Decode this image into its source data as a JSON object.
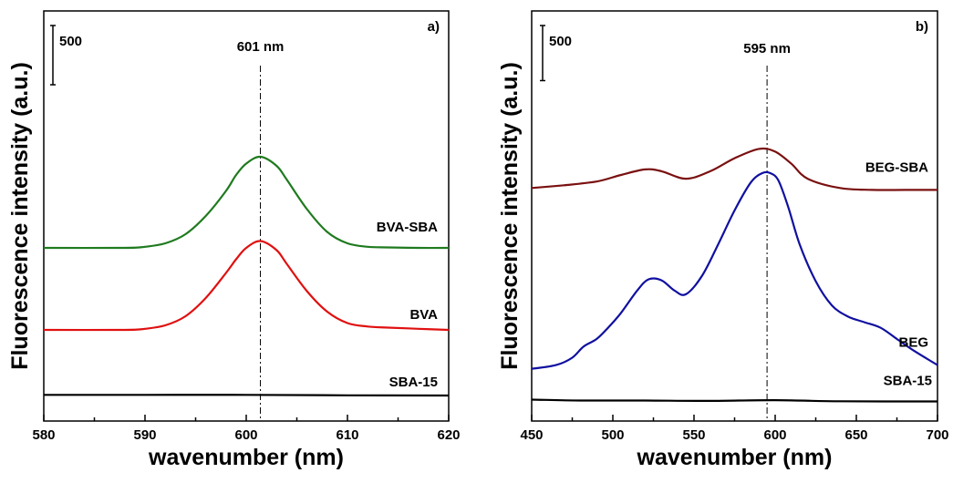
{
  "chart_data": [
    {
      "type": "line",
      "panel_label": "a)",
      "xlabel": "wavenumber (nm)",
      "ylabel": "Fluorescence intensity (a.u.)",
      "xlim": [
        580,
        620
      ],
      "xticks": [
        "580",
        "590",
        "600",
        "610",
        "620"
      ],
      "ylim": [
        0,
        1800
      ],
      "scale_bar": "500",
      "scale_bar_value": 500,
      "reference_line": {
        "x": 601.4,
        "label": "601 nm"
      },
      "series": [
        {
          "name": "BVA-SBA",
          "color": "#1f7a1f",
          "x": [
            580,
            588,
            590,
            592,
            594,
            596,
            598,
            599,
            600,
            601.4,
            603,
            604,
            606,
            608,
            610,
            612,
            614,
            617,
            620
          ],
          "y": [
            760,
            760,
            765,
            780,
            820,
            900,
            1010,
            1080,
            1130,
            1160,
            1120,
            1060,
            930,
            830,
            780,
            765,
            762,
            760,
            760
          ]
        },
        {
          "name": "BVA",
          "color": "#e01010",
          "x": [
            580,
            588,
            590,
            592,
            594,
            596,
            598,
            599,
            600,
            601.4,
            603,
            604,
            606,
            608,
            610,
            612,
            614,
            617,
            620
          ],
          "y": [
            400,
            400,
            405,
            420,
            460,
            540,
            650,
            710,
            760,
            790,
            750,
            690,
            570,
            480,
            430,
            415,
            410,
            405,
            400
          ]
        },
        {
          "name": "SBA-15",
          "color": "#000000",
          "x": [
            580,
            590,
            600,
            610,
            620
          ],
          "y": [
            115,
            115,
            115,
            113,
            112
          ]
        }
      ]
    },
    {
      "type": "line",
      "panel_label": "b)",
      "xlabel": "wavenumber (nm)",
      "ylabel": "Fluorescence intensity (a.u.)",
      "xlim": [
        450,
        700
      ],
      "xticks": [
        "450",
        "500",
        "550",
        "600",
        "650",
        "700"
      ],
      "ylim": [
        0,
        2200
      ],
      "scale_bar": "500",
      "scale_bar_value": 500,
      "reference_line": {
        "x": 595,
        "label": "595 nm"
      },
      "series": [
        {
          "name": "BEG-SBA",
          "color": "#7a1010",
          "x": [
            450,
            470,
            490,
            505,
            520,
            530,
            545,
            560,
            575,
            590,
            600,
            610,
            620,
            640,
            660,
            680,
            700
          ],
          "y": [
            1250,
            1265,
            1285,
            1320,
            1350,
            1340,
            1300,
            1340,
            1410,
            1460,
            1445,
            1380,
            1300,
            1250,
            1240,
            1240,
            1240
          ]
        },
        {
          "name": "BEG",
          "color": "#1010a0",
          "x": [
            450,
            465,
            475,
            482,
            490,
            497,
            505,
            515,
            522,
            530,
            538,
            545,
            555,
            565,
            575,
            585,
            592,
            597,
            602,
            608,
            615,
            625,
            635,
            645,
            655,
            665,
            675,
            685,
            700
          ],
          "y": [
            280,
            300,
            340,
            400,
            440,
            500,
            580,
            700,
            760,
            755,
            700,
            680,
            780,
            950,
            1130,
            1280,
            1330,
            1330,
            1290,
            1150,
            950,
            750,
            620,
            560,
            530,
            500,
            440,
            380,
            300
          ]
        },
        {
          "name": "SBA-15",
          "color": "#000000",
          "x": [
            450,
            480,
            520,
            560,
            600,
            640,
            700
          ],
          "y": [
            115,
            110,
            110,
            108,
            112,
            106,
            105
          ]
        }
      ]
    }
  ],
  "series_label_positions": {}
}
